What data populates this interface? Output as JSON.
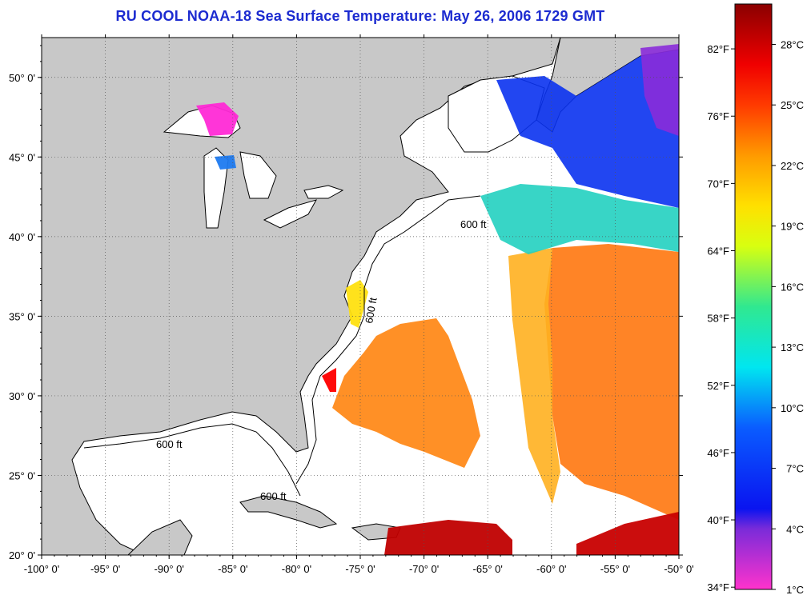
{
  "title": "RU COOL  NOAA-18  Sea Surface Temperature:  May 26, 2006 1729 GMT",
  "map": {
    "lon_range": [
      -100,
      -50
    ],
    "lat_range": [
      20,
      52.5
    ],
    "lon_ticks": [
      "-100° 0'",
      "-95° 0'",
      "-90° 0'",
      "-85° 0'",
      "-80° 0'",
      "-75° 0'",
      "-70° 0'",
      "-65° 0'",
      "-60° 0'",
      "-55° 0'",
      "-50° 0'"
    ],
    "lon_tick_values": [
      -100,
      -95,
      -90,
      -85,
      -80,
      -75,
      -70,
      -65,
      -60,
      -55,
      -50
    ],
    "lat_ticks": [
      "20° 0'",
      "25° 0'",
      "30° 0'",
      "35° 0'",
      "40° 0'",
      "45° 0'",
      "50° 0'"
    ],
    "lat_tick_values": [
      20,
      25,
      30,
      35,
      40,
      45,
      50
    ],
    "grid": true,
    "land_color": "#c8c8c8",
    "no_data_color": "#ffffff",
    "contour_label": "600 ft"
  },
  "colorbar": {
    "range_c": [
      1,
      30
    ],
    "celsius_ticks": [
      "1°C",
      "4°C",
      "7°C",
      "10°C",
      "13°C",
      "16°C",
      "19°C",
      "22°C",
      "25°C",
      "28°C"
    ],
    "celsius_values": [
      1,
      4,
      7,
      10,
      13,
      16,
      19,
      22,
      25,
      28
    ],
    "fahrenheit_ticks": [
      "34°F",
      "40°F",
      "46°F",
      "52°F",
      "58°F",
      "64°F",
      "70°F",
      "76°F",
      "82°F"
    ],
    "fahrenheit_values": [
      34,
      40,
      46,
      52,
      58,
      64,
      70,
      76,
      82
    ],
    "stops": [
      {
        "t": 1,
        "color": "#ff33cc"
      },
      {
        "t": 4,
        "color": "#7a2bd9"
      },
      {
        "t": 5,
        "color": "#0a14f0"
      },
      {
        "t": 9,
        "color": "#0a5cff"
      },
      {
        "t": 12,
        "color": "#00e6f0"
      },
      {
        "t": 15,
        "color": "#30e890"
      },
      {
        "t": 18,
        "color": "#d8ff10"
      },
      {
        "t": 20,
        "color": "#ffe000"
      },
      {
        "t": 22.5,
        "color": "#ff9a00"
      },
      {
        "t": 25,
        "color": "#ff3a00"
      },
      {
        "t": 27,
        "color": "#f00000"
      },
      {
        "t": 30,
        "color": "#8a0000"
      }
    ]
  }
}
